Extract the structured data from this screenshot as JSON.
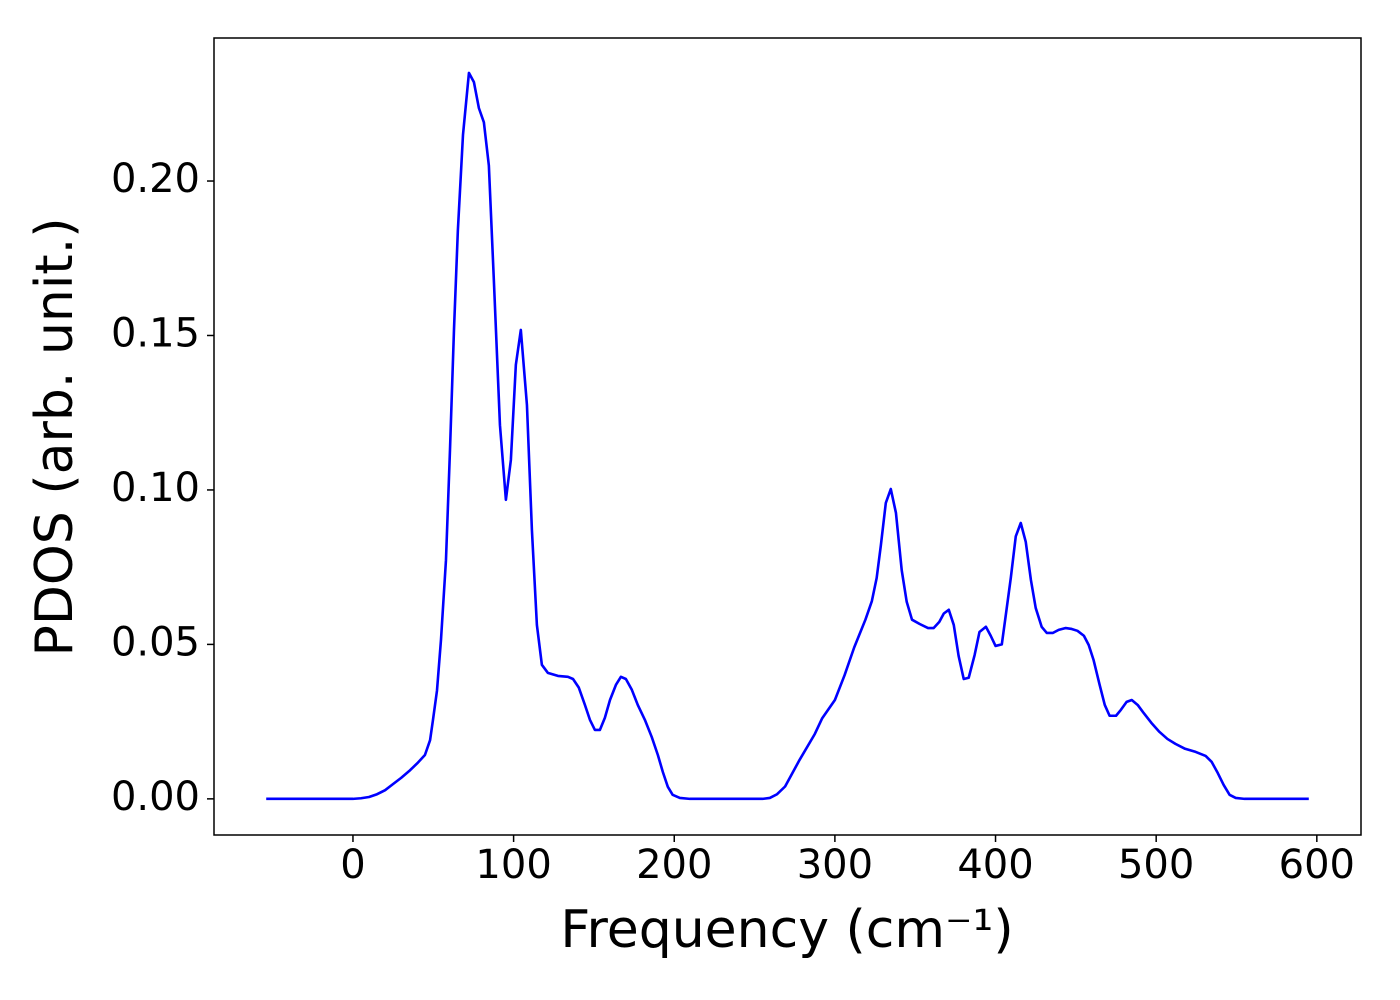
{
  "chart_data": {
    "type": "line",
    "xlabel": "Frequency (cm⁻¹)",
    "ylabel": "PDOS (arb. unit.)",
    "color": "#0000ff",
    "x": [
      -54,
      -20,
      0,
      5,
      10,
      15,
      20,
      25,
      30,
      35,
      40,
      44.8,
      48,
      49.8,
      52.3,
      54.8,
      57.9,
      60.4,
      62.9,
      65.3,
      68.5,
      72.2,
      75.3,
      78.4,
      81.5,
      84.6,
      87.7,
      91.5,
      95.2,
      98.3,
      101.4,
      104.5,
      108.3,
      111.4,
      114.5,
      117.6,
      121.3,
      127.6,
      133.8,
      137,
      140.6,
      144.4,
      147.5,
      150.6,
      153.7,
      156.8,
      160,
      163.7,
      166.8,
      169.9,
      173.6,
      177.3,
      181.7,
      186,
      189.8,
      192.9,
      196,
      199,
      203.5,
      209.7,
      255,
      259.5,
      264,
      269,
      278,
      287.5,
      292,
      300,
      306,
      312,
      319,
      323,
      326,
      328.6,
      331.7,
      334.8,
      338,
      341.6,
      344.7,
      348,
      352.8,
      358,
      361.5,
      365,
      367.8,
      370.9,
      374,
      377,
      380.2,
      383.3,
      387,
      390,
      394,
      397,
      400,
      403.9,
      406,
      409.5,
      412.6,
      415.7,
      418.8,
      422,
      425,
      428.7,
      431.9,
      435.6,
      439.3,
      443.7,
      447.4,
      451,
      455,
      458,
      461,
      464.8,
      468,
      471,
      475,
      478,
      481.6,
      484.8,
      488.5,
      492.2,
      497,
      502,
      507,
      512,
      518,
      524.6,
      530.8,
      534.5,
      538,
      542,
      545.7,
      549.5,
      555,
      595
    ],
    "values": [
      0,
      0,
      0,
      0.0002,
      0.0006,
      0.0015,
      0.0028,
      0.0048,
      0.0068,
      0.009,
      0.0115,
      0.0142,
      0.019,
      0.0255,
      0.035,
      0.0515,
      0.0773,
      0.113,
      0.152,
      0.184,
      0.215,
      0.235,
      0.232,
      0.2236,
      0.219,
      0.205,
      0.168,
      0.121,
      0.0968,
      0.1097,
      0.1405,
      0.1518,
      0.1275,
      0.087,
      0.0563,
      0.0434,
      0.0408,
      0.0398,
      0.0395,
      0.0388,
      0.036,
      0.0304,
      0.0256,
      0.0223,
      0.0223,
      0.0262,
      0.032,
      0.0369,
      0.0395,
      0.0388,
      0.0353,
      0.0304,
      0.0256,
      0.02,
      0.0142,
      0.0087,
      0.0039,
      0.0013,
      0.0003,
      0,
      0,
      0.0003,
      0.0015,
      0.004,
      0.0126,
      0.021,
      0.026,
      0.032,
      0.04,
      0.049,
      0.058,
      0.064,
      0.0715,
      0.082,
      0.0958,
      0.1003,
      0.0926,
      0.074,
      0.0638,
      0.058,
      0.0566,
      0.0553,
      0.0553,
      0.0573,
      0.06,
      0.0612,
      0.0563,
      0.0463,
      0.0388,
      0.0392,
      0.0466,
      0.054,
      0.0557,
      0.0528,
      0.0495,
      0.05,
      0.058,
      0.0715,
      0.085,
      0.0893,
      0.0832,
      0.0709,
      0.0618,
      0.0557,
      0.0537,
      0.0537,
      0.0547,
      0.0553,
      0.055,
      0.0544,
      0.0528,
      0.0498,
      0.045,
      0.0369,
      0.0304,
      0.0269,
      0.0269,
      0.0288,
      0.0314,
      0.032,
      0.0304,
      0.0278,
      0.0246,
      0.0217,
      0.0194,
      0.0178,
      0.0162,
      0.0152,
      0.0139,
      0.012,
      0.0087,
      0.0045,
      0.0013,
      0.0003,
      0,
      0
    ],
    "xlim": [
      -86.5,
      627.5
    ],
    "ylim": [
      -0.0117,
      0.2463
    ],
    "xticks": [
      0,
      100,
      200,
      300,
      400,
      500,
      600
    ],
    "yticks": [
      {
        "value": 0,
        "label": "0.00"
      },
      {
        "value": 0.05,
        "label": "0.05"
      },
      {
        "value": 0.1,
        "label": "0.10"
      },
      0.15,
      {
        "value": 0.2,
        "label": "0.20"
      }
    ],
    "grid": false
  }
}
